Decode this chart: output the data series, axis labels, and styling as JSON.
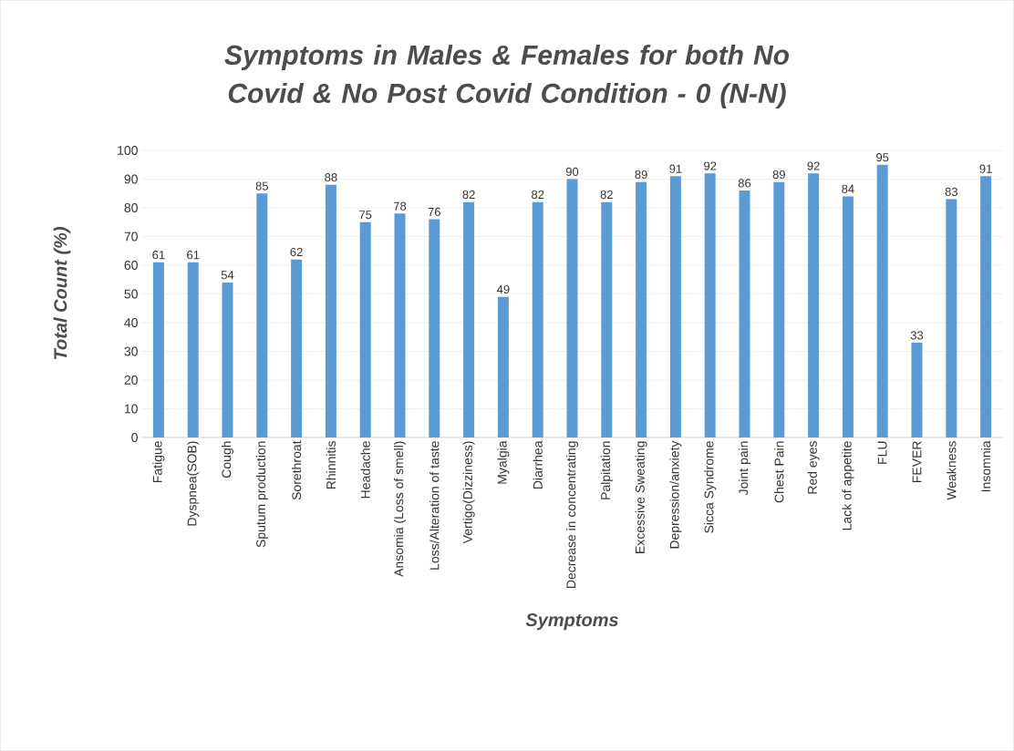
{
  "chart_data": {
    "type": "bar",
    "title": "Symptoms in Males & Females for both No Covid & No Post Covid Condition - 0 (N-N)",
    "xlabel": "Symptoms",
    "ylabel": "Total Count (%)",
    "categories": [
      "Fatigue",
      "Dyspnea(SOB)",
      "Cough",
      "Sputum production",
      "Sorethroat",
      "Rhinnitis",
      "Headache",
      "Ansomia (Loss of smell)",
      "Loss/Alteration of taste",
      "Vertigo(Dizziness)",
      "Myalgia",
      "Diarrhea",
      "Decrease in concentrating",
      "Palpitation",
      "Excessive Sweating",
      "Depression/anxiety",
      "Sicca Syndrome",
      "Joint pain",
      "Chest Pain",
      "Red eyes",
      "Lack of appetite",
      "FLU",
      "FEVER",
      "Weakness",
      "Insomnia"
    ],
    "values": [
      61,
      61,
      54,
      85,
      62,
      88,
      75,
      78,
      76,
      82,
      49,
      82,
      90,
      82,
      89,
      91,
      92,
      86,
      89,
      92,
      84,
      95,
      33,
      83,
      91
    ],
    "color": "#5b9bd5",
    "ylim": [
      0,
      100
    ],
    "yticks": [
      0,
      10,
      20,
      30,
      40,
      50,
      60,
      70,
      80,
      90,
      100
    ],
    "grid": "y",
    "data_labels": true
  }
}
